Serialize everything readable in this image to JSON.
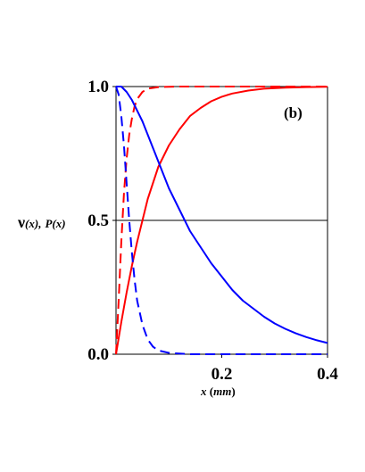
{
  "chart_data": {
    "type": "line",
    "panel_label": "(b)",
    "xlabel": {
      "var": "x",
      "open": " (",
      "unit": "mm",
      "close": ")"
    },
    "ylabel": {
      "nu": "ν",
      "nu_arg": "(x),",
      "p": "P",
      "p_arg": "(x)"
    },
    "xlim": [
      0,
      0.4
    ],
    "ylim": [
      0,
      1
    ],
    "x_ticks": [
      {
        "value": 0.2,
        "label": "0.2"
      },
      {
        "value": 0.4,
        "label": "0.4"
      }
    ],
    "y_ticks": [
      {
        "value": 0.0,
        "label": "0.0"
      },
      {
        "value": 0.5,
        "label": "0.5"
      },
      {
        "value": 1.0,
        "label": "1.0"
      }
    ],
    "reference_line_y": 0.5,
    "series": [
      {
        "color": "#ff0000",
        "dash": "solid",
        "points": [
          [
            0,
            0
          ],
          [
            0.01,
            0.12
          ],
          [
            0.02,
            0.23
          ],
          [
            0.03,
            0.33
          ],
          [
            0.04,
            0.42
          ],
          [
            0.05,
            0.5
          ],
          [
            0.06,
            0.58
          ],
          [
            0.07,
            0.64
          ],
          [
            0.08,
            0.7
          ],
          [
            0.1,
            0.78
          ],
          [
            0.12,
            0.84
          ],
          [
            0.14,
            0.89
          ],
          [
            0.16,
            0.92
          ],
          [
            0.18,
            0.945
          ],
          [
            0.2,
            0.962
          ],
          [
            0.22,
            0.974
          ],
          [
            0.25,
            0.985
          ],
          [
            0.28,
            0.992
          ],
          [
            0.32,
            0.996
          ],
          [
            0.36,
            0.998
          ],
          [
            0.4,
            0.999
          ]
        ]
      },
      {
        "color": "#ff0000",
        "dash": "dashed",
        "points": [
          [
            0,
            0
          ],
          [
            0.005,
            0.2
          ],
          [
            0.01,
            0.42
          ],
          [
            0.015,
            0.6
          ],
          [
            0.02,
            0.73
          ],
          [
            0.025,
            0.82
          ],
          [
            0.03,
            0.88
          ],
          [
            0.035,
            0.925
          ],
          [
            0.04,
            0.953
          ],
          [
            0.05,
            0.98
          ],
          [
            0.06,
            0.992
          ],
          [
            0.08,
            0.998
          ],
          [
            0.12,
            1.0
          ],
          [
            0.2,
            1.0
          ],
          [
            0.3,
            1.0
          ],
          [
            0.4,
            1.0
          ]
        ]
      },
      {
        "color": "#0000ff",
        "dash": "solid",
        "points": [
          [
            0,
            1.0
          ],
          [
            0.01,
            1.0
          ],
          [
            0.02,
            0.98
          ],
          [
            0.03,
            0.95
          ],
          [
            0.04,
            0.91
          ],
          [
            0.05,
            0.87
          ],
          [
            0.06,
            0.82
          ],
          [
            0.07,
            0.77
          ],
          [
            0.08,
            0.72
          ],
          [
            0.09,
            0.67
          ],
          [
            0.1,
            0.62
          ],
          [
            0.12,
            0.54
          ],
          [
            0.14,
            0.46
          ],
          [
            0.16,
            0.4
          ],
          [
            0.18,
            0.34
          ],
          [
            0.2,
            0.29
          ],
          [
            0.22,
            0.24
          ],
          [
            0.24,
            0.2
          ],
          [
            0.26,
            0.17
          ],
          [
            0.28,
            0.14
          ],
          [
            0.3,
            0.115
          ],
          [
            0.32,
            0.095
          ],
          [
            0.34,
            0.078
          ],
          [
            0.36,
            0.064
          ],
          [
            0.38,
            0.052
          ],
          [
            0.4,
            0.042
          ]
        ]
      },
      {
        "color": "#0000ff",
        "dash": "dashed",
        "points": [
          [
            0,
            1.0
          ],
          [
            0.005,
            0.97
          ],
          [
            0.01,
            0.89
          ],
          [
            0.015,
            0.78
          ],
          [
            0.02,
            0.64
          ],
          [
            0.025,
            0.5
          ],
          [
            0.03,
            0.38
          ],
          [
            0.035,
            0.28
          ],
          [
            0.04,
            0.2
          ],
          [
            0.05,
            0.11
          ],
          [
            0.06,
            0.055
          ],
          [
            0.07,
            0.028
          ],
          [
            0.08,
            0.014
          ],
          [
            0.1,
            0.005
          ],
          [
            0.14,
            0.0
          ],
          [
            0.2,
            0.0
          ],
          [
            0.3,
            0.0
          ],
          [
            0.4,
            0.0
          ]
        ]
      }
    ]
  }
}
